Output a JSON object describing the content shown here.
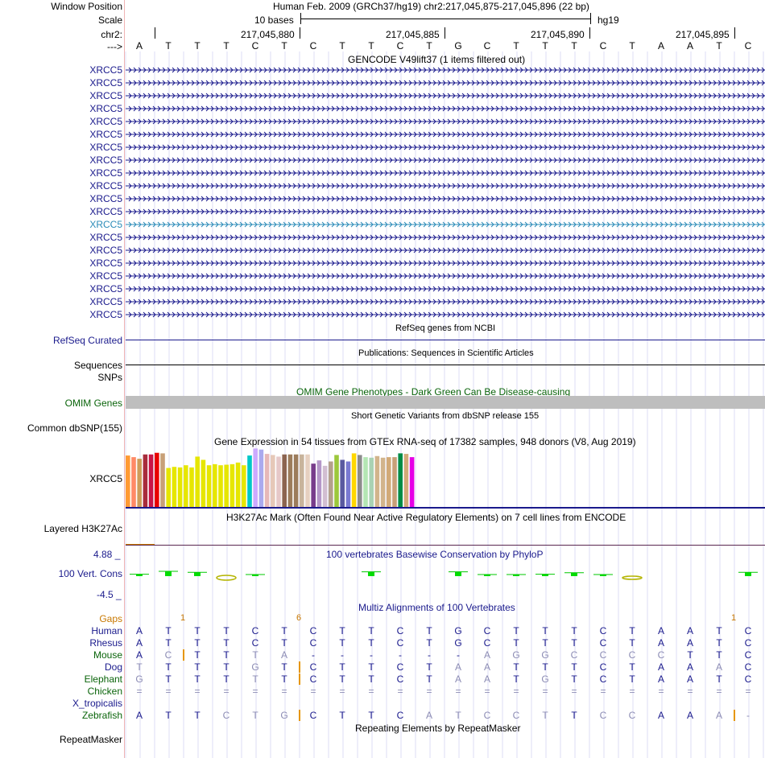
{
  "header": {
    "window_position_label": "Window Position",
    "window_position_text": "Human Feb. 2009 (GRCh37/hg19)   chr2:217,045,875-217,045,896 (22 bp)",
    "scale_label": "Scale",
    "scale_bar_text": "10 bases",
    "scale_assembly": "hg19",
    "chrom_label": "chr2:",
    "strand_label": "--->",
    "coordinates": [
      "217,045,880",
      "217,045,885",
      "217,045,890",
      "217,045,895"
    ]
  },
  "sequence": [
    "A",
    "T",
    "T",
    "T",
    "C",
    "T",
    "C",
    "T",
    "T",
    "C",
    "T",
    "G",
    "C",
    "T",
    "T",
    "T",
    "C",
    "T",
    "A",
    "A",
    "T",
    "C"
  ],
  "gencode": {
    "title": "GENCODE V49lift37 (1 items filtered out)",
    "genes": [
      "XRCC5",
      "XRCC5",
      "XRCC5",
      "XRCC5",
      "XRCC5",
      "XRCC5",
      "XRCC5",
      "XRCC5",
      "XRCC5",
      "XRCC5",
      "XRCC5",
      "XRCC5",
      "XRCC5",
      "XRCC5",
      "XRCC5",
      "XRCC5",
      "XRCC5",
      "XRCC5",
      "XRCC5",
      "XRCC5"
    ],
    "selected_index": 12,
    "colors": {
      "gene": "#1a1a8c",
      "selected": "#2b8bb8"
    }
  },
  "refseq": {
    "title": "RefSeq genes from NCBI",
    "label": "RefSeq Curated",
    "color": "#1a1a8c"
  },
  "publications": {
    "title": "Publications: Sequences in Scientific Articles",
    "label1": "Sequences",
    "label2": "SNPs"
  },
  "omim": {
    "title": "OMIM Gene Phenotypes - Dark Green Can Be Disease-causing",
    "label": "OMIM Genes",
    "color": "#0a640a"
  },
  "dbsnp": {
    "title": "Short Genetic Variants from dbSNP release 155",
    "label": "Common dbSNP(155)"
  },
  "gtex": {
    "title": "Gene Expression in 54 tissues from GTEx RNA-seq of 17382 samples, 948 donors (V8, Aug 2019)",
    "label": "XRCC5",
    "bars": [
      {
        "color": "#ff9a33",
        "v": 0.95
      },
      {
        "color": "#ff8a66",
        "v": 0.92
      },
      {
        "color": "#ce9c5a",
        "v": 0.89
      },
      {
        "color": "#a82c3c",
        "v": 0.97
      },
      {
        "color": "#c81446",
        "v": 0.97
      },
      {
        "color": "#e80000",
        "v": 1.0
      },
      {
        "color": "#c8a078",
        "v": 0.99
      },
      {
        "color": "#e6e600",
        "v": 0.72
      },
      {
        "color": "#e6e600",
        "v": 0.74
      },
      {
        "color": "#e6e600",
        "v": 0.73
      },
      {
        "color": "#e6e600",
        "v": 0.77
      },
      {
        "color": "#e6e600",
        "v": 0.73
      },
      {
        "color": "#e6e600",
        "v": 0.93
      },
      {
        "color": "#e6e600",
        "v": 0.87
      },
      {
        "color": "#e6e600",
        "v": 0.77
      },
      {
        "color": "#e6e600",
        "v": 0.79
      },
      {
        "color": "#e6e600",
        "v": 0.77
      },
      {
        "color": "#e6e600",
        "v": 0.78
      },
      {
        "color": "#e6e600",
        "v": 0.79
      },
      {
        "color": "#e6e600",
        "v": 0.82
      },
      {
        "color": "#e6e600",
        "v": 0.77
      },
      {
        "color": "#00c8c8",
        "v": 0.95
      },
      {
        "color": "#ccaaff",
        "v": 1.08
      },
      {
        "color": "#aaaaee",
        "v": 1.06
      },
      {
        "color": "#e6b8b8",
        "v": 0.98
      },
      {
        "color": "#e6c8b8",
        "v": 0.96
      },
      {
        "color": "#e6c8c8",
        "v": 0.93
      },
      {
        "color": "#8c6450",
        "v": 0.97
      },
      {
        "color": "#9c7c5c",
        "v": 0.97
      },
      {
        "color": "#9c7c5c",
        "v": 0.97
      },
      {
        "color": "#c8b49c",
        "v": 0.97
      },
      {
        "color": "#e6d0c0",
        "v": 0.97
      },
      {
        "color": "#783c8c",
        "v": 0.8
      },
      {
        "color": "#b496c8",
        "v": 0.86
      },
      {
        "color": "#d2bed2",
        "v": 0.76
      },
      {
        "color": "#b4a08c",
        "v": 0.84
      },
      {
        "color": "#9cc83c",
        "v": 0.96
      },
      {
        "color": "#5a5aa0",
        "v": 0.87
      },
      {
        "color": "#7a7ad2",
        "v": 0.84
      },
      {
        "color": "#ffd700",
        "v": 0.99
      },
      {
        "color": "#8c8c8c",
        "v": 0.96
      },
      {
        "color": "#b4e6b4",
        "v": 0.92
      },
      {
        "color": "#aad2b4",
        "v": 0.91
      },
      {
        "color": "#d2b48c",
        "v": 0.94
      },
      {
        "color": "#d2b48c",
        "v": 0.91
      },
      {
        "color": "#d2aa78",
        "v": 0.92
      },
      {
        "color": "#c8a078",
        "v": 0.92
      },
      {
        "color": "#008c46",
        "v": 0.99
      },
      {
        "color": "#d2aa78",
        "v": 0.98
      },
      {
        "color": "#e600e6",
        "v": 0.92
      }
    ]
  },
  "h3k27ac": {
    "title": "H3K27Ac Mark (Often Found Near Active Regulatory Elements) on 7 cell lines from ENCODE",
    "label": "Layered H3K27Ac"
  },
  "phylop": {
    "title": "100 vertebrates Basewise Conservation by PhyloP",
    "label": "100 Vert. Cons",
    "max_label": "4.88 _",
    "min_label": "-4.5 _",
    "scores": [
      0.4,
      1.0,
      0.8,
      -1.2,
      0.3,
      0.0,
      0.0,
      0.0,
      0.9,
      0.0,
      0.0,
      0.9,
      0.3,
      0.3,
      0.4,
      0.7,
      0.3,
      -0.6,
      0.0,
      0.0,
      0.0,
      0.8
    ]
  },
  "multiz": {
    "title": "Multiz Alignments of 100 Vertebrates",
    "gaps_label": "Gaps",
    "gap_marks": [
      {
        "pos": 1.5,
        "text": "1"
      },
      {
        "pos": 5.5,
        "text": "6"
      },
      {
        "pos": 20.5,
        "text": "1"
      }
    ],
    "species": [
      {
        "name": "Human",
        "seq": "ATTTCTCTTCTGCTTTCTAATC",
        "color": "#1a1a8c",
        "faded": "......................"
      },
      {
        "name": "Rhesus",
        "seq": "ATTTCTCTTCTGCTTTCTAATC",
        "color": "#1a1a8c",
        "faded": "......................"
      },
      {
        "name": "Mouse",
        "seq": "ACTTTA------AGGCCCCTTC",
        "color": "#0a640a",
        "faded": ".x..xx------xxxxxxx..."
      },
      {
        "name": "Dog",
        "seq": "TTTTGTCTTCTAATTTCTAAAC",
        "color": "#1a1a8c",
        "faded": "x...x......xx.......x."
      },
      {
        "name": "Elephant",
        "seq": "GTTTTTCTTCTAATGTCTAATC",
        "color": "#0a640a",
        "faded": "x...x......xx.x......."
      },
      {
        "name": "Chicken",
        "seq": "======================",
        "color": "#0a640a",
        "faded": "xxxxxxxxxxxxxxxxxxxxxx"
      },
      {
        "name": "X_tropicalis",
        "seq": "",
        "color": "#1a1a8c",
        "faded": ""
      },
      {
        "name": "Zebrafish",
        "seq": "ATTCTGCTTCATCCTTCCAAA-",
        "color": "#0a640a",
        "faded": "...xxx....xxxxx.xx..xx"
      }
    ]
  },
  "repeatmasker": {
    "title": "Repeating Elements by RepeatMasker",
    "label": "RepeatMasker"
  }
}
